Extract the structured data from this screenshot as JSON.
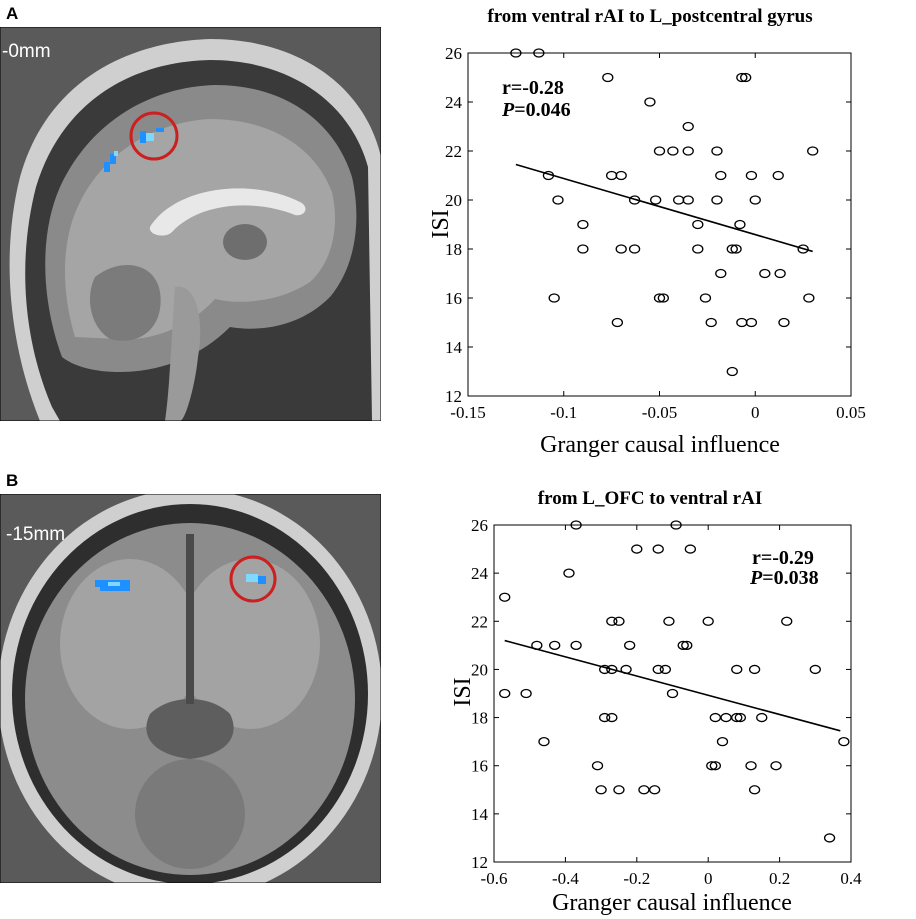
{
  "panels": [
    {
      "letter": "A",
      "slice_label": "-0mm"
    },
    {
      "letter": "B",
      "slice_label": "-15mm"
    }
  ],
  "colors": {
    "activation": "#1e90ff",
    "activation_light": "#7fd8ff",
    "roi_circle": "#cc1f1f",
    "marker": "#000000"
  },
  "chart_data": [
    {
      "type": "scatter",
      "title": "from ventral rAI to L_postcentral gyrus",
      "xlabel": "Granger causal influence",
      "ylabel": "ISI",
      "xlim": [
        -0.15,
        0.05
      ],
      "ylim": [
        12,
        26
      ],
      "xticks": [
        "-0.15",
        "-0.1",
        "-0.05",
        "0",
        "0.05"
      ],
      "xtick_values": [
        -0.15,
        -0.1,
        -0.05,
        0,
        0.05
      ],
      "yticks": [
        "12",
        "14",
        "16",
        "18",
        "20",
        "22",
        "24",
        "26"
      ],
      "ytick_values": [
        12,
        14,
        16,
        18,
        20,
        22,
        24,
        26
      ],
      "stat_r": "r=-0.28",
      "stat_p_label": "P",
      "stat_p_value": "=0.046",
      "stat_position": "top-left",
      "trend_line": {
        "x": [
          -0.125,
          0.03
        ],
        "y": [
          21.45,
          17.9
        ]
      },
      "points": [
        [
          -0.125,
          26
        ],
        [
          -0.113,
          26
        ],
        [
          -0.077,
          25
        ],
        [
          -0.007,
          25
        ],
        [
          -0.005,
          25
        ],
        [
          -0.055,
          24
        ],
        [
          -0.035,
          23
        ],
        [
          -0.05,
          22
        ],
        [
          -0.043,
          22
        ],
        [
          -0.035,
          22
        ],
        [
          -0.02,
          22
        ],
        [
          0.03,
          22
        ],
        [
          -0.108,
          21
        ],
        [
          -0.075,
          21
        ],
        [
          -0.07,
          21
        ],
        [
          -0.018,
          21
        ],
        [
          -0.002,
          21
        ],
        [
          0.012,
          21
        ],
        [
          -0.103,
          20
        ],
        [
          -0.063,
          20
        ],
        [
          -0.052,
          20
        ],
        [
          -0.04,
          20
        ],
        [
          -0.035,
          20
        ],
        [
          -0.02,
          20
        ],
        [
          0.0,
          20
        ],
        [
          -0.09,
          19
        ],
        [
          -0.03,
          19
        ],
        [
          -0.008,
          19
        ],
        [
          -0.09,
          18
        ],
        [
          -0.07,
          18
        ],
        [
          -0.063,
          18
        ],
        [
          -0.03,
          18
        ],
        [
          -0.012,
          18
        ],
        [
          -0.01,
          18
        ],
        [
          0.025,
          18
        ],
        [
          -0.018,
          17
        ],
        [
          0.005,
          17
        ],
        [
          0.013,
          17
        ],
        [
          -0.105,
          16
        ],
        [
          -0.05,
          16
        ],
        [
          -0.048,
          16
        ],
        [
          -0.026,
          16
        ],
        [
          0.028,
          16
        ],
        [
          -0.072,
          15
        ],
        [
          -0.023,
          15
        ],
        [
          -0.007,
          15
        ],
        [
          -0.002,
          15
        ],
        [
          0.015,
          15
        ],
        [
          -0.012,
          13
        ]
      ]
    },
    {
      "type": "scatter",
      "title": "from L_OFC to ventral rAI",
      "xlabel": "Granger causal influence",
      "ylabel": "ISI",
      "xlim": [
        -0.6,
        0.4
      ],
      "ylim": [
        12,
        26
      ],
      "xticks": [
        "-0.6",
        "-0.4",
        "-0.2",
        "0",
        "0.2",
        "0.4"
      ],
      "xtick_values": [
        -0.6,
        -0.4,
        -0.2,
        0,
        0.2,
        0.4
      ],
      "yticks": [
        "12",
        "14",
        "16",
        "18",
        "20",
        "22",
        "24",
        "26"
      ],
      "ytick_values": [
        12,
        14,
        16,
        18,
        20,
        22,
        24,
        26
      ],
      "stat_r": "r=-0.29",
      "stat_p_label": "P",
      "stat_p_value": "=0.038",
      "stat_position": "top-right",
      "trend_line": {
        "x": [
          -0.57,
          0.37
        ],
        "y": [
          21.2,
          17.45
        ]
      },
      "points": [
        [
          -0.37,
          26
        ],
        [
          -0.09,
          26
        ],
        [
          -0.2,
          25
        ],
        [
          -0.14,
          25
        ],
        [
          -0.05,
          25
        ],
        [
          -0.39,
          24
        ],
        [
          -0.57,
          23
        ],
        [
          -0.27,
          22
        ],
        [
          -0.25,
          22
        ],
        [
          -0.11,
          22
        ],
        [
          0.0,
          22
        ],
        [
          0.22,
          22
        ],
        [
          -0.48,
          21
        ],
        [
          -0.43,
          21
        ],
        [
          -0.37,
          21
        ],
        [
          -0.22,
          21
        ],
        [
          -0.07,
          21
        ],
        [
          -0.06,
          21
        ],
        [
          -0.29,
          20
        ],
        [
          -0.27,
          20
        ],
        [
          -0.23,
          20
        ],
        [
          -0.14,
          20
        ],
        [
          -0.12,
          20
        ],
        [
          0.08,
          20
        ],
        [
          0.13,
          20
        ],
        [
          0.3,
          20
        ],
        [
          -0.57,
          19
        ],
        [
          -0.51,
          19
        ],
        [
          -0.1,
          19
        ],
        [
          -0.29,
          18
        ],
        [
          -0.27,
          18
        ],
        [
          0.02,
          18
        ],
        [
          0.05,
          18
        ],
        [
          0.08,
          18
        ],
        [
          0.09,
          18
        ],
        [
          0.15,
          18
        ],
        [
          -0.46,
          17
        ],
        [
          0.04,
          17
        ],
        [
          0.38,
          17
        ],
        [
          -0.31,
          16
        ],
        [
          0.01,
          16
        ],
        [
          0.02,
          16
        ],
        [
          0.12,
          16
        ],
        [
          0.19,
          16
        ],
        [
          -0.3,
          15
        ],
        [
          -0.25,
          15
        ],
        [
          -0.18,
          15
        ],
        [
          -0.15,
          15
        ],
        [
          0.13,
          15
        ],
        [
          0.34,
          13
        ]
      ]
    }
  ]
}
